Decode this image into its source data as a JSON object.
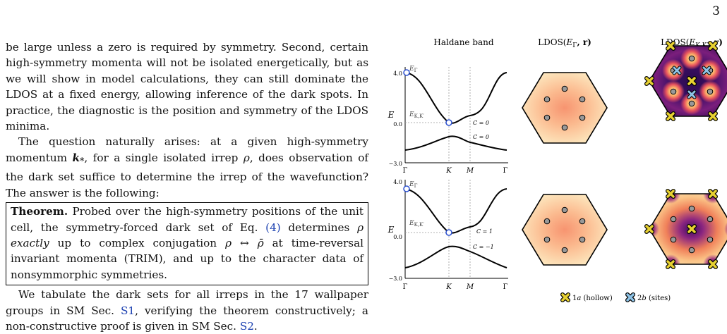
{
  "page_number": "3",
  "text": {
    "p1": "be large unless a zero is required by symmetry. Second, certain high-symmetry momenta will not be isolated energetically, but as we will show in model calculations, they can still dominate the LDOS at a fixed energy, allowing inference of the dark spots. In practice, the diagnostic is the position and symmetry of the LDOS minima.",
    "p2_a": "The question naturally arises: at a given high-symmetry momentum ",
    "p2_k": "k",
    "p2_ksub": "*",
    "p2_b": ", for a single isolated irrep ",
    "p2_rho": "ρ",
    "p2_c": ", does observation of the dark set suffice to determine the irrep of the wavefunction? The answer is the following:",
    "thm_head": "Theorem.",
    "thm_a": " Probed over the high-symmetry positions of the unit cell, the symmetry-forced dark set of Eq. ",
    "thm_ref": "(4)",
    "thm_b": " determines ",
    "thm_rho": "ρ",
    "thm_exactly": "exactly",
    "thm_c": " up to complex conjugation ",
    "thm_conj": "ρ ↔ ρ̄",
    "thm_d": " at time-reversal invariant momenta (TRIM), and up to the character data of nonsymmorphic symmetries.",
    "p3_a": "We tabulate the dark sets for all irreps in the 17 wallpaper groups in SM Sec. ",
    "p3_ref1": "S1",
    "p3_b": ", verifying the theorem constructively; a non-constructive proof is given in SM Sec. ",
    "p3_ref2": "S2",
    "p3_c": "."
  },
  "figure": {
    "col_titles": [
      "Haldane band",
      "LDOS(E_Γ, r)",
      "LDOS(E_KK', r)"
    ],
    "col_title_1": "Haldane band",
    "col_title_2_pre": "LDOS(",
    "col_title_2_E": "E",
    "col_title_2_sub": "Γ",
    "col_title_2_post": ", r)",
    "col_title_3_pre": "LDOS(",
    "col_title_3_E": "E",
    "col_title_3_sub": "K,K′",
    "col_title_3_post": ", r)",
    "ylabel": "E",
    "yticks": [
      "4.0",
      "0.0",
      "−3.0"
    ],
    "xticks": [
      "Γ",
      "K",
      "M",
      "Γ"
    ],
    "label_EG": "EΓ",
    "label_EG_main": "E",
    "label_EG_sub": "Γ",
    "label_EK_main": "E",
    "label_EK_sub": "K,K′",
    "top_chern": [
      "C = 0",
      "C = 0"
    ],
    "bottom_chern": [
      "C = 1",
      "C = −1"
    ],
    "legend": [
      {
        "label": "1a (hollow)",
        "pre": "1",
        "it": "a",
        "post": " (hollow)",
        "color": "#e7d132"
      },
      {
        "label": "2b (sites)",
        "pre": "2",
        "it": "b",
        "post": " (sites)",
        "color": "#8ec3e6"
      }
    ]
  },
  "chart_data": [
    {
      "type": "line",
      "title": "Haldane band",
      "ylabel": "E",
      "xticks": [
        "Γ",
        "K",
        "M",
        "Γ"
      ],
      "ylim": [
        -3.0,
        4.0
      ],
      "series": [
        {
          "name": "upper band",
          "x": [
            0,
            0.33,
            0.5,
            0.66,
            0.8,
            1.0
          ],
          "y": [
            4.0,
            0.0,
            0.45,
            0.6,
            2.4,
            4.0
          ]
        },
        {
          "name": "lower band",
          "x": [
            0,
            0.33,
            0.5,
            0.66,
            0.8,
            1.0
          ],
          "y": [
            -2.6,
            -1.2,
            -1.6,
            -1.9,
            -2.3,
            -2.6
          ]
        }
      ],
      "annotations": [
        "E_Γ",
        "E_K,K′",
        "C = 0",
        "C = 0"
      ]
    },
    {
      "type": "line",
      "ylabel": "E",
      "xticks": [
        "Γ",
        "K",
        "M",
        "Γ"
      ],
      "ylim": [
        -3.0,
        4.0
      ],
      "series": [
        {
          "name": "upper band",
          "x": [
            0,
            0.33,
            0.5,
            0.66,
            0.8,
            1.0
          ],
          "y": [
            3.5,
            0.4,
            0.9,
            1.1,
            2.2,
            3.5
          ]
        },
        {
          "name": "lower band",
          "x": [
            0,
            0.33,
            0.5,
            0.66,
            0.8,
            1.0
          ],
          "y": [
            -2.7,
            -1.0,
            -1.3,
            -1.6,
            -2.2,
            -2.7
          ]
        }
      ],
      "annotations": [
        "E_Γ",
        "E_K,K′",
        "C = 1",
        "C = −1"
      ]
    }
  ]
}
